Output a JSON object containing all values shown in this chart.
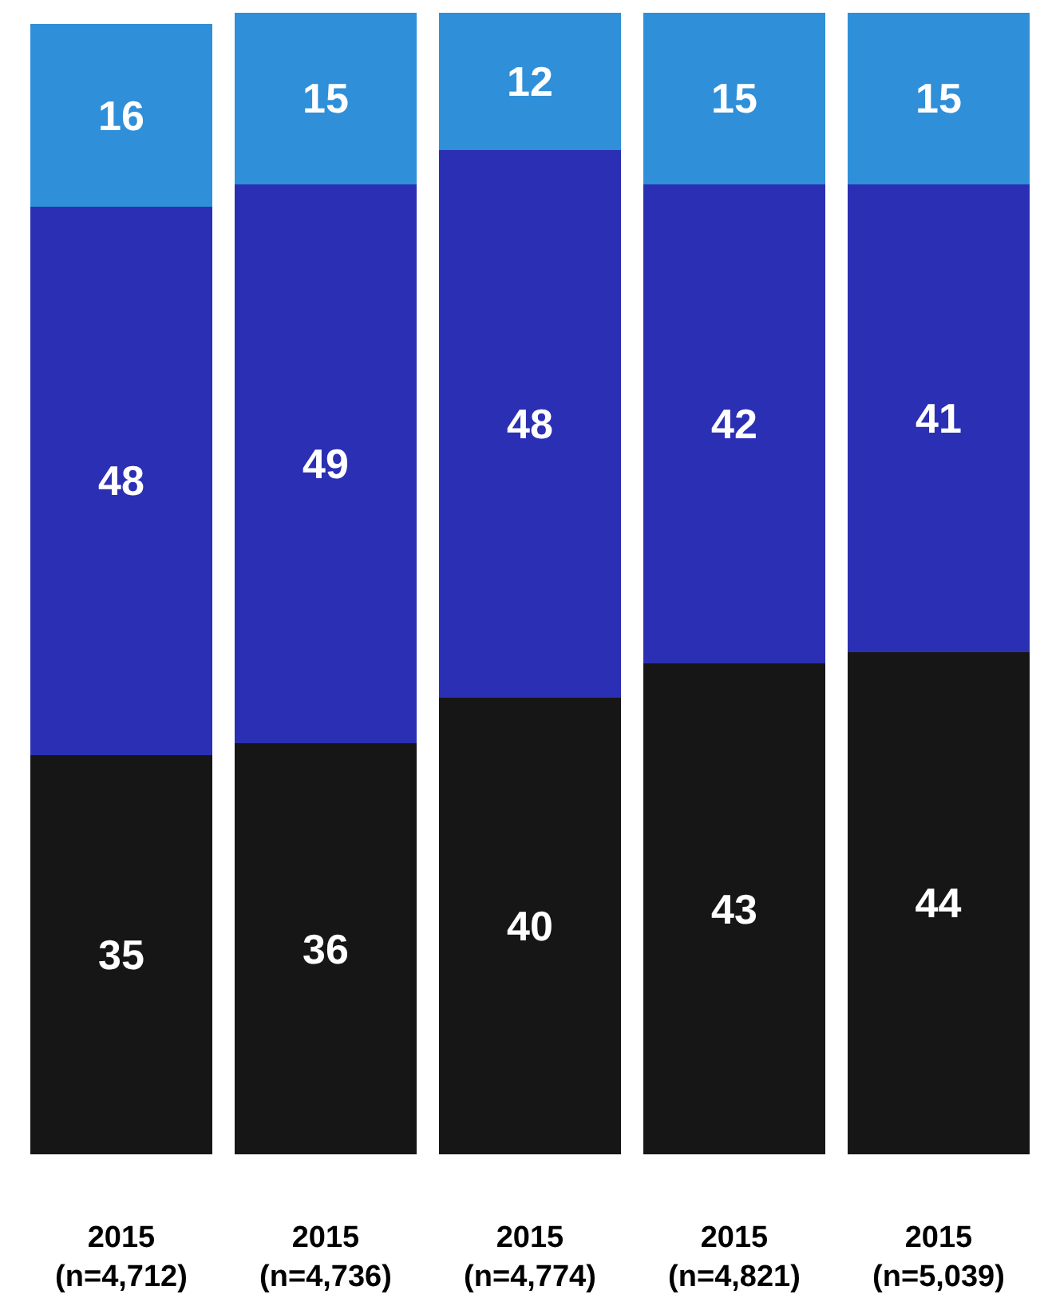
{
  "chart_data": {
    "type": "bar",
    "stacked": true,
    "categories": [
      "2015\n(n=4,712)",
      "2015\n(n=4,736)",
      "2015\n(n=4,774)",
      "2015\n(n=4,821)",
      "2015\n(n=5,039)"
    ],
    "series": [
      {
        "color": "#171616",
        "values": [
          35,
          36,
          40,
          43,
          44
        ]
      },
      {
        "color": "#2b2fb3",
        "values": [
          48,
          49,
          48,
          42,
          41
        ]
      },
      {
        "color": "#2f8fd8",
        "values": [
          16,
          15,
          12,
          15,
          15
        ]
      }
    ],
    "ylim": [
      0,
      100
    ],
    "data_labels": true,
    "grid": false,
    "tick_labels": "x"
  }
}
